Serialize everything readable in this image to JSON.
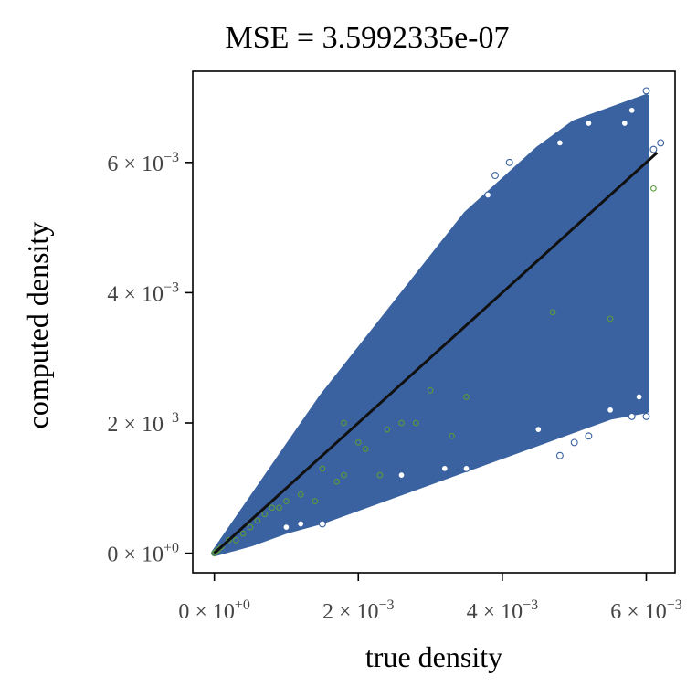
{
  "chart_data": {
    "type": "scatter",
    "title": "MSE = 3.5992335e-07",
    "xlabel": "true density",
    "ylabel": "computed density",
    "xlim": [
      -0.0003,
      0.0064
    ],
    "ylim": [
      -0.0003,
      0.0074
    ],
    "grid": false,
    "legend": "none",
    "x_ticks": [
      {
        "value": 0,
        "mantissa": "0",
        "exponent": "+0"
      },
      {
        "value": 0.002,
        "mantissa": "2",
        "exponent": "−3"
      },
      {
        "value": 0.004,
        "mantissa": "4",
        "exponent": "−3"
      },
      {
        "value": 0.006,
        "mantissa": "6",
        "exponent": "−3"
      }
    ],
    "y_ticks": [
      {
        "value": 0,
        "mantissa": "0",
        "exponent": "+0"
      },
      {
        "value": 0.002,
        "mantissa": "2",
        "exponent": "−3"
      },
      {
        "value": 0.004,
        "mantissa": "4",
        "exponent": "−3"
      },
      {
        "value": 0.006,
        "mantissa": "6",
        "exponent": "−3"
      }
    ],
    "colors": {
      "main_points": "#3a62a0",
      "outlier_points": "#5c9a3a",
      "reference_line": "#111111",
      "axis": "#000000"
    },
    "series": [
      {
        "kind": "point-cloud",
        "envelope": [
          [
            0,
            0
          ],
          [
            0.0005,
            0.0008
          ],
          [
            0.001,
            0.0016
          ],
          [
            0.0015,
            0.0024
          ],
          [
            0.002,
            0.0031
          ],
          [
            0.0025,
            0.0038
          ],
          [
            0.003,
            0.0045
          ],
          [
            0.0035,
            0.0052
          ],
          [
            0.004,
            0.0057
          ],
          [
            0.0045,
            0.0062
          ],
          [
            0.005,
            0.0066
          ],
          [
            0.0055,
            0.0068
          ],
          [
            0.006,
            0.007
          ],
          [
            0.006,
            0.0022
          ],
          [
            0.0055,
            0.0021
          ],
          [
            0.005,
            0.0019
          ],
          [
            0.0045,
            0.0017
          ],
          [
            0.004,
            0.0015
          ],
          [
            0.0035,
            0.0013
          ],
          [
            0.003,
            0.0011
          ],
          [
            0.0025,
            0.0009
          ],
          [
            0.002,
            0.0007
          ],
          [
            0.0015,
            0.0005
          ],
          [
            0.001,
            0.00035
          ],
          [
            0.0005,
            0.00015
          ]
        ],
        "stray_points": [
          [
            0.006,
            0.0071
          ],
          [
            0.0058,
            0.0068
          ],
          [
            0.0057,
            0.0066
          ],
          [
            0.0052,
            0.0066
          ],
          [
            0.0048,
            0.0063
          ],
          [
            0.0041,
            0.006
          ],
          [
            0.0039,
            0.0058
          ],
          [
            0.0038,
            0.0055
          ],
          [
            0.0062,
            0.0063
          ],
          [
            0.0061,
            0.0062
          ],
          [
            0.006,
            0.0021
          ],
          [
            0.0059,
            0.0024
          ],
          [
            0.0058,
            0.0021
          ],
          [
            0.0055,
            0.0022
          ],
          [
            0.005,
            0.0017
          ],
          [
            0.0052,
            0.0018
          ],
          [
            0.0048,
            0.0015
          ],
          [
            0.0045,
            0.0019
          ],
          [
            0.0035,
            0.0013
          ],
          [
            0.0026,
            0.0012
          ],
          [
            0.0015,
            0.00045
          ],
          [
            0.0012,
            0.00045
          ],
          [
            0.001,
            0.0004
          ],
          [
            0.0032,
            0.0013
          ]
        ]
      },
      {
        "kind": "outliers",
        "points": [
          [
            0.0061,
            0.0056
          ],
          [
            0.0047,
            0.0037
          ],
          [
            0.0055,
            0.0036
          ],
          [
            0.003,
            0.0025
          ],
          [
            0.0035,
            0.0024
          ],
          [
            0.0028,
            0.002
          ],
          [
            0.0026,
            0.002
          ],
          [
            0.0024,
            0.0019
          ],
          [
            0.0018,
            0.002
          ],
          [
            0.002,
            0.0017
          ],
          [
            0.0021,
            0.0016
          ],
          [
            0.0033,
            0.0018
          ],
          [
            0.0018,
            0.0012
          ],
          [
            0.0015,
            0.0013
          ],
          [
            0.0023,
            0.0012
          ],
          [
            0.0017,
            0.0011
          ],
          [
            0.0012,
            0.0009
          ],
          [
            0.0014,
            0.0008
          ],
          [
            0.001,
            0.0008
          ],
          [
            0.0009,
            0.0007
          ],
          [
            0.0008,
            0.0007
          ],
          [
            0.0007,
            0.0006
          ],
          [
            0.0006,
            0.0005
          ],
          [
            0.0005,
            0.0004
          ],
          [
            0.0004,
            0.0003
          ],
          [
            0.0003,
            0.0002
          ],
          [
            0.0002,
            0.0002
          ],
          [
            0.0001,
            0.0001
          ],
          [
            5e-05,
            5e-05
          ],
          [
            2e-05,
            2e-05
          ],
          [
            0,
            0
          ]
        ]
      },
      {
        "kind": "reference-line",
        "points": [
          [
            0,
            0
          ],
          [
            0.00615,
            0.00615
          ]
        ]
      }
    ]
  }
}
